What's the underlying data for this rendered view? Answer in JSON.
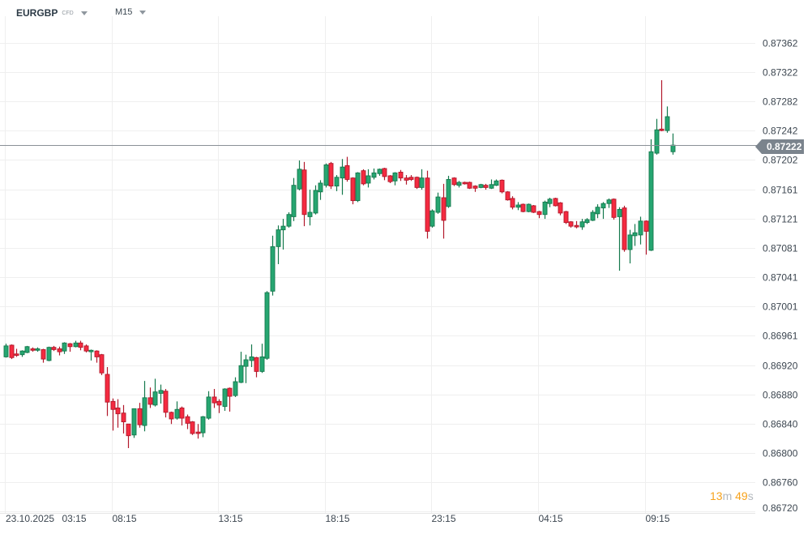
{
  "header": {
    "symbol": "EURGBP",
    "instrument_type": "CFD",
    "timeframe": "M15"
  },
  "current_price": "0.87222",
  "countdown": {
    "minutes": "13",
    "m_unit": "m",
    "seconds": "49",
    "s_unit": "s"
  },
  "colors": {
    "up": "#26a671",
    "up_border": "#14784c",
    "down": "#f52a40",
    "down_border": "#b2182b",
    "grid": "#efefef",
    "price_line": "#8a9096"
  },
  "chart_data": {
    "type": "candlestick",
    "title": "EURGBP M15",
    "ylim": [
      0.86715,
      0.8742
    ],
    "y_ticks": [
      "0.87362",
      "0.87322",
      "0.87282",
      "0.87242",
      "0.87202",
      "0.87161",
      "0.87121",
      "0.87081",
      "0.87041",
      "0.87001",
      "0.86961",
      "0.86920",
      "0.86880",
      "0.86840",
      "0.86800",
      "0.86760",
      "0.86720"
    ],
    "x_date_label": "23.10.2025",
    "x_ticks": [
      {
        "label": "03:15",
        "index": 0
      },
      {
        "label": "08:15",
        "index": 20
      },
      {
        "label": "13:15",
        "index": 40
      },
      {
        "label": "18:15",
        "index": 60
      },
      {
        "label": "23:15",
        "index": 80
      },
      {
        "label": "04:15",
        "index": 100
      },
      {
        "label": "09:15",
        "index": 120
      }
    ],
    "grid": true,
    "ohlc": [
      [
        0.86932,
        0.8695,
        0.86931,
        0.86947
      ],
      [
        0.86948,
        0.86949,
        0.86929,
        0.86931
      ],
      [
        0.86936,
        0.86943,
        0.86932,
        0.86934
      ],
      [
        0.86935,
        0.86941,
        0.86932,
        0.8694
      ],
      [
        0.86938,
        0.86947,
        0.86937,
        0.86946
      ],
      [
        0.86943,
        0.86945,
        0.86939,
        0.86941
      ],
      [
        0.86941,
        0.86945,
        0.86939,
        0.86943
      ],
      [
        0.86942,
        0.86943,
        0.86924,
        0.86929
      ],
      [
        0.86927,
        0.86946,
        0.86926,
        0.86945
      ],
      [
        0.86945,
        0.86947,
        0.8694,
        0.86942
      ],
      [
        0.86943,
        0.86946,
        0.86934,
        0.86939
      ],
      [
        0.8694,
        0.86952,
        0.86936,
        0.86951
      ],
      [
        0.8695,
        0.86951,
        0.86939,
        0.86946
      ],
      [
        0.86946,
        0.86954,
        0.86945,
        0.86951
      ],
      [
        0.86951,
        0.86954,
        0.86941,
        0.86945
      ],
      [
        0.86947,
        0.86949,
        0.86938,
        0.8694
      ],
      [
        0.86939,
        0.86942,
        0.86927,
        0.86941
      ],
      [
        0.8694,
        0.86941,
        0.86924,
        0.86932
      ],
      [
        0.86935,
        0.86936,
        0.86907,
        0.8691
      ],
      [
        0.86908,
        0.86918,
        0.86851,
        0.8687
      ],
      [
        0.86871,
        0.86875,
        0.86831,
        0.8686
      ],
      [
        0.86862,
        0.86874,
        0.86835,
        0.86854
      ],
      [
        0.86855,
        0.86866,
        0.86827,
        0.86843
      ],
      [
        0.8684,
        0.8684,
        0.86807,
        0.86824
      ],
      [
        0.86825,
        0.86861,
        0.86821,
        0.86861
      ],
      [
        0.86861,
        0.86869,
        0.86835,
        0.86839
      ],
      [
        0.86838,
        0.86899,
        0.8683,
        0.86876
      ],
      [
        0.86876,
        0.8689,
        0.86862,
        0.86867
      ],
      [
        0.86866,
        0.86902,
        0.86864,
        0.86884
      ],
      [
        0.86882,
        0.86894,
        0.86868,
        0.86886
      ],
      [
        0.86885,
        0.86888,
        0.86849,
        0.86856
      ],
      [
        0.86856,
        0.86857,
        0.8684,
        0.86847
      ],
      [
        0.86848,
        0.86871,
        0.86846,
        0.8686
      ],
      [
        0.86862,
        0.86864,
        0.86838,
        0.86848
      ],
      [
        0.8685,
        0.86853,
        0.86833,
        0.86841
      ],
      [
        0.86843,
        0.86844,
        0.86825,
        0.86827
      ],
      [
        0.86829,
        0.8684,
        0.8682,
        0.86827
      ],
      [
        0.86828,
        0.86851,
        0.86822,
        0.8685
      ],
      [
        0.86848,
        0.86885,
        0.86846,
        0.86877
      ],
      [
        0.86877,
        0.86888,
        0.86862,
        0.86869
      ],
      [
        0.86871,
        0.86874,
        0.86855,
        0.86866
      ],
      [
        0.86864,
        0.86889,
        0.86858,
        0.86888
      ],
      [
        0.86889,
        0.8689,
        0.86857,
        0.86878
      ],
      [
        0.86879,
        0.86904,
        0.86877,
        0.86898
      ],
      [
        0.86897,
        0.86939,
        0.86896,
        0.8692
      ],
      [
        0.86919,
        0.86935,
        0.86896,
        0.86928
      ],
      [
        0.86927,
        0.86949,
        0.86918,
        0.86932
      ],
      [
        0.86931,
        0.86932,
        0.86904,
        0.86912
      ],
      [
        0.86912,
        0.8695,
        0.8691,
        0.86932
      ],
      [
        0.8693,
        0.87022,
        0.86928,
        0.8702
      ],
      [
        0.87022,
        0.87098,
        0.87016,
        0.87083
      ],
      [
        0.87083,
        0.87112,
        0.87059,
        0.87106
      ],
      [
        0.87106,
        0.87121,
        0.87079,
        0.87111
      ],
      [
        0.87111,
        0.8713,
        0.87109,
        0.87127
      ],
      [
        0.87124,
        0.87177,
        0.87118,
        0.87167
      ],
      [
        0.87162,
        0.87201,
        0.8716,
        0.87189
      ],
      [
        0.87188,
        0.87199,
        0.87111,
        0.87127
      ],
      [
        0.87124,
        0.87161,
        0.87112,
        0.8713
      ],
      [
        0.87129,
        0.87167,
        0.87127,
        0.8716
      ],
      [
        0.87158,
        0.87174,
        0.87147,
        0.8717
      ],
      [
        0.87167,
        0.87197,
        0.87164,
        0.87195
      ],
      [
        0.87197,
        0.87199,
        0.87162,
        0.87166
      ],
      [
        0.87166,
        0.87181,
        0.87159,
        0.87178
      ],
      [
        0.87177,
        0.87203,
        0.87154,
        0.87192
      ],
      [
        0.87194,
        0.87206,
        0.87172,
        0.87175
      ],
      [
        0.87177,
        0.87178,
        0.87141,
        0.87146
      ],
      [
        0.87146,
        0.87185,
        0.87144,
        0.87184
      ],
      [
        0.87187,
        0.87189,
        0.87167,
        0.87169
      ],
      [
        0.8717,
        0.87189,
        0.87164,
        0.8718
      ],
      [
        0.87178,
        0.8719,
        0.87175,
        0.87184
      ],
      [
        0.87183,
        0.8719,
        0.8718,
        0.87189
      ],
      [
        0.8719,
        0.87191,
        0.87174,
        0.87179
      ],
      [
        0.8718,
        0.87181,
        0.8717,
        0.87172
      ],
      [
        0.87173,
        0.87185,
        0.87167,
        0.87184
      ],
      [
        0.87185,
        0.87188,
        0.87173,
        0.87177
      ],
      [
        0.87177,
        0.87181,
        0.87168,
        0.87174
      ],
      [
        0.87178,
        0.87181,
        0.87173,
        0.87175
      ],
      [
        0.87178,
        0.87179,
        0.87162,
        0.87164
      ],
      [
        0.87164,
        0.87189,
        0.87161,
        0.87177
      ],
      [
        0.87177,
        0.87187,
        0.87094,
        0.87104
      ],
      [
        0.87111,
        0.87134,
        0.87109,
        0.87132
      ],
      [
        0.8713,
        0.87157,
        0.87128,
        0.87151
      ],
      [
        0.8715,
        0.87169,
        0.87094,
        0.87119
      ],
      [
        0.87138,
        0.8718,
        0.87136,
        0.87175
      ],
      [
        0.87177,
        0.87178,
        0.87166,
        0.87168
      ],
      [
        0.87167,
        0.87173,
        0.87164,
        0.87171
      ],
      [
        0.87171,
        0.87172,
        0.87168,
        0.87169
      ],
      [
        0.87171,
        0.87172,
        0.87162,
        0.87163
      ],
      [
        0.87166,
        0.87167,
        0.87158,
        0.87163
      ],
      [
        0.87164,
        0.87169,
        0.87163,
        0.87168
      ],
      [
        0.87167,
        0.87169,
        0.87161,
        0.87164
      ],
      [
        0.87163,
        0.87175,
        0.87162,
        0.87168
      ],
      [
        0.87167,
        0.87175,
        0.87166,
        0.87173
      ],
      [
        0.87174,
        0.87175,
        0.87156,
        0.87158
      ],
      [
        0.87158,
        0.87159,
        0.87146,
        0.87147
      ],
      [
        0.87149,
        0.87152,
        0.87134,
        0.87137
      ],
      [
        0.87137,
        0.87144,
        0.87133,
        0.8714
      ],
      [
        0.87141,
        0.87142,
        0.8713,
        0.87131
      ],
      [
        0.87131,
        0.87142,
        0.8713,
        0.87141
      ],
      [
        0.87139,
        0.8714,
        0.87129,
        0.8713
      ],
      [
        0.87131,
        0.87132,
        0.87122,
        0.87127
      ],
      [
        0.87127,
        0.87146,
        0.87121,
        0.87144
      ],
      [
        0.87142,
        0.8715,
        0.87137,
        0.87148
      ],
      [
        0.87149,
        0.8715,
        0.87138,
        0.87139
      ],
      [
        0.87143,
        0.87144,
        0.87126,
        0.87129
      ],
      [
        0.87131,
        0.87132,
        0.87114,
        0.87116
      ],
      [
        0.87117,
        0.87118,
        0.87109,
        0.87111
      ],
      [
        0.87112,
        0.87118,
        0.87108,
        0.8711
      ],
      [
        0.8711,
        0.87121,
        0.87106,
        0.87117
      ],
      [
        0.87116,
        0.87122,
        0.87114,
        0.8712
      ],
      [
        0.87119,
        0.87133,
        0.87118,
        0.8713
      ],
      [
        0.87128,
        0.87141,
        0.87122,
        0.87137
      ],
      [
        0.87136,
        0.87144,
        0.87121,
        0.87142
      ],
      [
        0.87142,
        0.87149,
        0.87136,
        0.87147
      ],
      [
        0.87148,
        0.87149,
        0.8712,
        0.87123
      ],
      [
        0.87124,
        0.87137,
        0.8705,
        0.87134
      ],
      [
        0.87136,
        0.87139,
        0.87076,
        0.87079
      ],
      [
        0.87079,
        0.87106,
        0.8706,
        0.87099
      ],
      [
        0.87098,
        0.87114,
        0.87084,
        0.87102
      ],
      [
        0.87099,
        0.87124,
        0.87086,
        0.87118
      ],
      [
        0.87118,
        0.87119,
        0.87072,
        0.87104
      ],
      [
        0.87078,
        0.8723,
        0.87077,
        0.87213
      ],
      [
        0.87211,
        0.87258,
        0.87209,
        0.87243
      ],
      [
        0.87244,
        0.87311,
        0.87241,
        0.87242
      ],
      [
        0.87242,
        0.87275,
        0.87239,
        0.87261
      ],
      [
        0.87213,
        0.87238,
        0.87209,
        0.87222
      ]
    ]
  }
}
